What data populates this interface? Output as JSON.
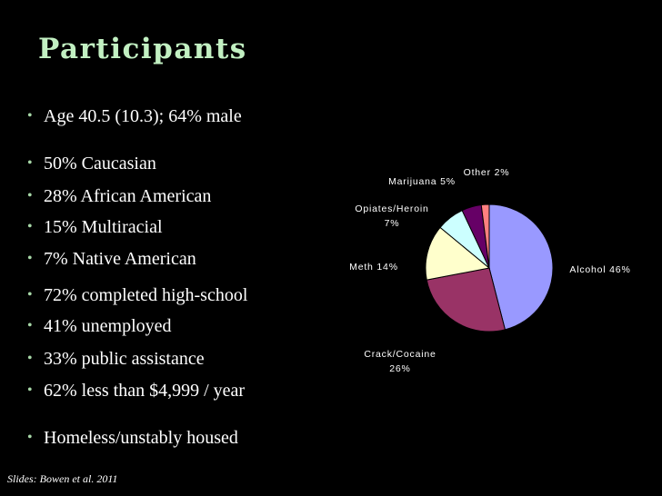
{
  "slide": {
    "title": "Participants",
    "footer": "Slides: Bowen et al. 2011"
  },
  "bullets": [
    "Age 40.5 (10.3);  64% male",
    "50% Caucasian",
    "28% African American",
    "15% Multiracial",
    "7% Native American",
    "72% completed high-school",
    "41% unemployed",
    "33% public assistance",
    "62% less than $4,999 / year",
    "Homeless/unstably housed"
  ],
  "chart_data": {
    "type": "pie",
    "title": "",
    "slices": [
      {
        "label_lines": [
          "Alcohol 46%"
        ],
        "value": 46,
        "color": "#9999ff"
      },
      {
        "label_lines": [
          "Crack/Cocaine",
          "26%"
        ],
        "value": 26,
        "color": "#993366"
      },
      {
        "label_lines": [
          "Meth 14%"
        ],
        "value": 14,
        "color": "#ffffcc"
      },
      {
        "label_lines": [
          "Opiates/Heroin",
          "7%"
        ],
        "value": 7,
        "color": "#ccffff"
      },
      {
        "label_lines": [
          "Marijuana 5%"
        ],
        "value": 5,
        "color": "#660066"
      },
      {
        "label_lines": [
          "Other 2%"
        ],
        "value": 2,
        "color": "#ff8080"
      }
    ]
  }
}
